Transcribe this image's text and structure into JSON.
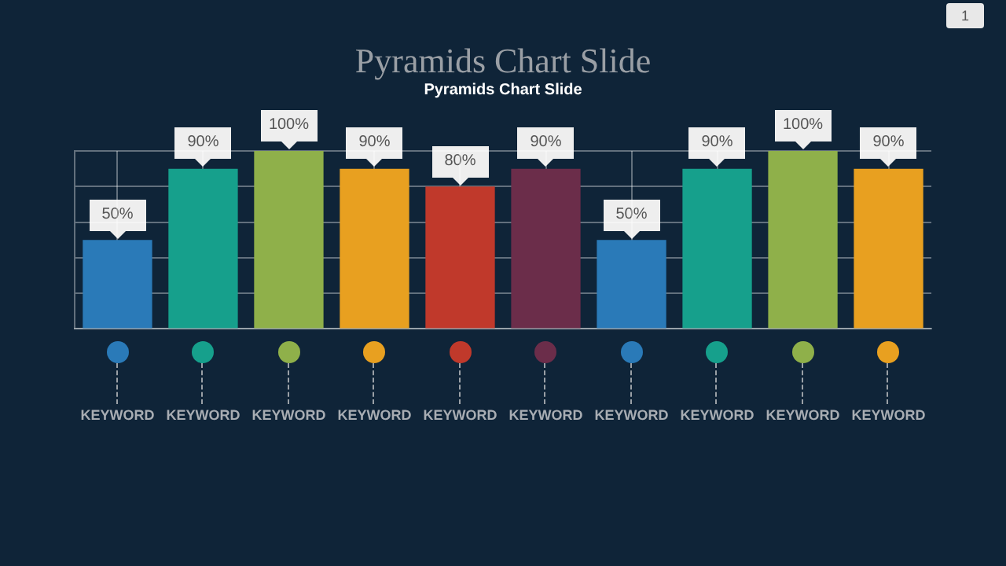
{
  "chart_data": {
    "type": "bar",
    "title": "Pyramids Chart Slide",
    "subtitle": "Pyramids Chart Slide",
    "categories": [
      "KEYWORD",
      "KEYWORD",
      "KEYWORD",
      "KEYWORD",
      "KEYWORD",
      "KEYWORD",
      "KEYWORD",
      "KEYWORD",
      "KEYWORD",
      "KEYWORD"
    ],
    "values": [
      50,
      90,
      100,
      90,
      80,
      90,
      50,
      90,
      100,
      90
    ],
    "value_labels": [
      "50%",
      "90%",
      "100%",
      "90%",
      "80%",
      "90%",
      "50%",
      "90%",
      "100%",
      "90%"
    ],
    "colors": [
      "#2a7ab8",
      "#16a08c",
      "#8fb04a",
      "#e8a020",
      "#c0392b",
      "#6b2d4a",
      "#2a7ab8",
      "#16a08c",
      "#8fb04a",
      "#e8a020"
    ],
    "grid": true,
    "tick_labels": "x",
    "legend": false,
    "annotations": [
      "1"
    ]
  }
}
